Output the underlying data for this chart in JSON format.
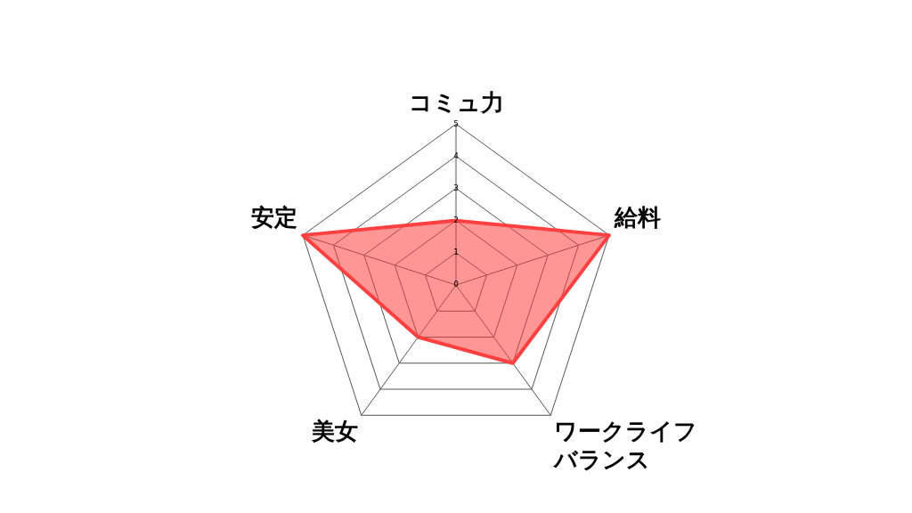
{
  "chart_data": {
    "type": "radar",
    "categories": [
      "コミュ力",
      "給料",
      "ワークライフバランス",
      "美女",
      "安定"
    ],
    "series": [
      {
        "color": "#ff4040",
        "values": [
          2,
          5,
          3,
          2,
          5
        ]
      }
    ],
    "ylim": [
      0,
      5
    ],
    "yticks": [
      0,
      1,
      2,
      3,
      4,
      5
    ],
    "grid": true,
    "legend": false,
    "marker": "none"
  }
}
